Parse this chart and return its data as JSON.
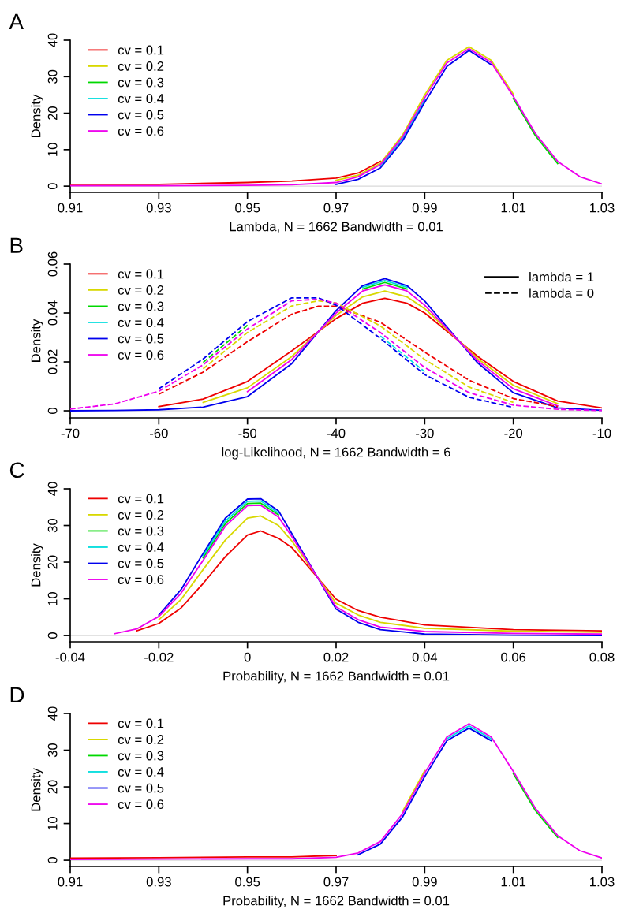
{
  "chart_data": [
    {
      "type": "line",
      "title": "A",
      "xlabel": "Lambda, N = 1662 Bandwidth = 0.01",
      "ylabel": "Density",
      "legend": "top left",
      "line_style": "solid",
      "xlim": [
        0.91,
        1.03
      ],
      "xticks": [
        0.91,
        0.93,
        0.95,
        0.97,
        0.99,
        1.01,
        1.03
      ],
      "ylim": [
        -1.7,
        40
      ],
      "yticks": [
        0,
        10,
        20,
        30,
        40
      ],
      "ref_lines": [
        {
          "axis": "y",
          "value": 0,
          "color": "#d9d9d9"
        }
      ],
      "x": [
        0.91,
        0.93,
        0.95,
        0.96,
        0.97,
        0.975,
        0.98,
        0.985,
        0.99,
        0.995,
        1.0,
        1.005,
        1.01,
        1.015,
        1.02,
        1.025,
        1.03
      ],
      "series": [
        {
          "name": "cv = 0.1",
          "color": "#ee0000",
          "values": [
            0.5,
            0.5,
            1.0,
            1.4,
            2.2,
            3.6,
            6.8,
            null,
            null,
            null,
            null,
            null,
            null,
            null,
            null,
            null,
            null
          ]
        },
        {
          "name": "cv = 0.2",
          "color": "#d8d800",
          "values": [
            null,
            null,
            null,
            null,
            1.6,
            3.0,
            6.3,
            14.0,
            25.0,
            34.5,
            38.2,
            34.5,
            25.2,
            null,
            null,
            null,
            null
          ]
        },
        {
          "name": "cv = 0.3",
          "color": "#00d800",
          "values": [
            null,
            null,
            null,
            null,
            null,
            null,
            null,
            null,
            null,
            null,
            null,
            null,
            24.0,
            13.8,
            6.2,
            null,
            null
          ]
        },
        {
          "name": "cv = 0.4",
          "color": "#00dddd",
          "values": [
            null,
            null,
            null,
            null,
            null,
            null,
            5.5,
            13.0,
            23.6,
            null,
            null,
            null,
            null,
            null,
            null,
            null,
            null
          ]
        },
        {
          "name": "cv = 0.5",
          "color": "#0000ee",
          "values": [
            null,
            null,
            null,
            null,
            0.5,
            1.9,
            5.0,
            12.4,
            23.0,
            32.8,
            37.2,
            33.3,
            null,
            null,
            null,
            null,
            null
          ]
        },
        {
          "name": "cv = 0.6",
          "color": "#ee00ee",
          "values": [
            0.1,
            0.1,
            0.2,
            0.4,
            1.0,
            2.6,
            5.9,
            13.5,
            24.2,
            33.8,
            37.7,
            33.9,
            24.6,
            14.4,
            6.8,
            2.6,
            0.6
          ]
        }
      ]
    },
    {
      "type": "line",
      "title": "B",
      "xlabel": "log-Likelihood, N = 1662 Bandwidth = 6",
      "ylabel": "Density",
      "legend": "top left",
      "line_style": "solid",
      "annotations": [
        "lambda = 1",
        "lambda = 0"
      ],
      "xlim": [
        -70,
        -10
      ],
      "xticks": [
        -70,
        -60,
        -50,
        -40,
        -30,
        -20,
        -10
      ],
      "ylim": [
        -0.0029,
        0.06
      ],
      "yticks": [
        0,
        0.02,
        0.04,
        0.06
      ],
      "ref_lines": [
        {
          "axis": "y",
          "value": 0,
          "color": "#d9d9d9"
        }
      ],
      "series": [
        {
          "name": "cv = 0.1",
          "color": "#ee0000",
          "x": [
            -60,
            -55,
            -50,
            -45,
            -40,
            -37,
            -34.5,
            -32,
            -30,
            -24,
            -20,
            -15,
            -10
          ],
          "values": [
            0.0017,
            0.0048,
            0.012,
            0.0245,
            0.0377,
            0.044,
            0.046,
            0.044,
            0.04,
            0.0222,
            0.012,
            0.004,
            0.0012
          ]
        },
        {
          "name": "cv = 0.2",
          "color": "#d8d800",
          "x": [
            -55,
            -50,
            -45,
            -40,
            -37,
            -34.5,
            -32,
            -30,
            -24,
            -20,
            -15
          ],
          "values": [
            0.0034,
            0.0094,
            0.0222,
            0.039,
            0.0466,
            0.049,
            0.0466,
            0.0418,
            0.0213,
            0.0104,
            0.0029
          ]
        },
        {
          "name": "cv = 0.3",
          "color": "#00d800",
          "x": [
            -37,
            -34.5,
            -32
          ],
          "values": [
            0.0498,
            0.0525,
            0.0498
          ]
        },
        {
          "name": "cv = 0.4",
          "color": "#00dddd",
          "x": [
            -37,
            -34.5,
            -32
          ],
          "values": [
            0.0505,
            0.0533,
            0.0505
          ]
        },
        {
          "name": "cv = 0.5",
          "color": "#0000ee",
          "x": [
            -70,
            -65,
            -60,
            -55,
            -50,
            -45,
            -40,
            -37,
            -34.5,
            -32,
            -30,
            -24,
            -20,
            -15,
            -10
          ],
          "values": [
            0,
            0.0001,
            0.0004,
            0.0015,
            0.0058,
            0.0193,
            0.041,
            0.0512,
            0.0541,
            0.0512,
            0.0449,
            0.0195,
            0.0074,
            0.0012,
            0.0002
          ]
        },
        {
          "name": "cv = 0.6",
          "color": "#ee00ee",
          "x": [
            -50,
            -45,
            -40,
            -37,
            -34.5,
            -32,
            -30,
            -24,
            -20,
            -15
          ],
          "values": [
            0.0078,
            0.021,
            0.04,
            0.049,
            0.0515,
            0.049,
            0.0432,
            0.0204,
            0.009,
            0.002
          ]
        },
        {
          "color": "#ee0000",
          "line_style": "dashed",
          "x": [
            -60,
            -55,
            -50,
            -45,
            -42,
            -40,
            -35,
            -30,
            -25,
            -20,
            -15
          ],
          "values": [
            0.0068,
            0.0158,
            0.0283,
            0.0395,
            0.0428,
            0.0428,
            0.0362,
            0.024,
            0.0125,
            0.005,
            0.0017
          ]
        },
        {
          "color": "#d8d800",
          "line_style": "dashed",
          "x": [
            -55,
            -50,
            -45,
            -42,
            -40,
            -35,
            -30,
            -25,
            -20
          ],
          "values": [
            0.0172,
            0.032,
            0.0429,
            0.045,
            0.0441,
            0.0347,
            0.021,
            0.0097,
            0.0034
          ]
        },
        {
          "color": "#00d800",
          "line_style": "dashed",
          "x": [
            -55,
            -50
          ],
          "values": [
            0.0198,
            0.035
          ]
        },
        {
          "color": "#00dddd",
          "line_style": "dashed",
          "x": [
            -35,
            -30
          ],
          "values": [
            0.0306,
            0.016
          ]
        },
        {
          "color": "#0000ee",
          "line_style": "dashed",
          "x": [
            -60,
            -55,
            -50,
            -45,
            -42,
            -40,
            -35,
            -30,
            -25,
            -20
          ],
          "values": [
            0.009,
            0.0212,
            0.0365,
            0.0462,
            0.0462,
            0.0432,
            0.0296,
            0.0148,
            0.0055,
            0.0014
          ]
        },
        {
          "color": "#ee00ee",
          "line_style": "dashed",
          "x": [
            -70,
            -65,
            -60,
            -55,
            -50,
            -45,
            -42,
            -40,
            -35,
            -30,
            -25,
            -20,
            -15,
            -10
          ],
          "values": [
            0.0007,
            0.0028,
            0.008,
            0.0188,
            0.0335,
            0.045,
            0.0456,
            0.044,
            0.032,
            0.0177,
            0.0074,
            0.0023,
            0.0006,
            0.0001
          ]
        }
      ]
    },
    {
      "type": "line",
      "title": "C",
      "xlabel": "Probability, N = 1662 Bandwidth = 0.01",
      "ylabel": "Density",
      "legend": "top left",
      "line_style": "solid",
      "xlim": [
        -0.04,
        0.08
      ],
      "xticks": [
        -0.04,
        -0.02,
        0,
        0.02,
        0.04,
        0.06,
        0.08
      ],
      "ylim": [
        -1.7,
        40
      ],
      "yticks": [
        0,
        10,
        20,
        30,
        40
      ],
      "ref_lines": [
        {
          "axis": "y",
          "value": 0,
          "color": "#d9d9d9"
        }
      ],
      "x": [
        -0.03,
        -0.025,
        -0.02,
        -0.015,
        -0.01,
        -0.005,
        0,
        0.003,
        0.007,
        0.01,
        0.02,
        0.025,
        0.03,
        0.04,
        0.06,
        0.08
      ],
      "series": [
        {
          "name": "cv = 0.1",
          "color": "#ee0000",
          "values": [
            null,
            1.3,
            3.3,
            7.5,
            14.2,
            21.5,
            27.4,
            28.5,
            26.5,
            24,
            9.9,
            6.8,
            5,
            2.9,
            1.6,
            1.3
          ]
        },
        {
          "name": "cv = 0.2",
          "color": "#d8d800",
          "values": [
            null,
            null,
            4.3,
            9.8,
            18,
            26,
            32,
            32.6,
            30,
            25.8,
            8.8,
            5.6,
            3.6,
            2,
            1.2,
            0.9
          ]
        },
        {
          "name": "cv = 0.3",
          "color": "#00d800",
          "values": [
            null,
            null,
            null,
            null,
            21.2,
            30.5,
            36.0,
            36.1,
            32.9,
            null,
            null,
            null,
            null,
            null,
            null,
            null
          ]
        },
        {
          "name": "cv = 0.4",
          "color": "#00dddd",
          "values": [
            null,
            null,
            null,
            null,
            21.8,
            31.2,
            36.6,
            36.7,
            33.4,
            null,
            null,
            null,
            null,
            null,
            null,
            null
          ]
        },
        {
          "name": "cv = 0.5",
          "color": "#0000ee",
          "values": [
            null,
            null,
            5.6,
            12.5,
            22.4,
            32.0,
            37.2,
            37.3,
            34.0,
            27.8,
            7.2,
            3.6,
            1.6,
            0.4,
            0.1,
            0.0
          ]
        },
        {
          "name": "cv = 0.6",
          "color": "#ee00ee",
          "values": [
            0.5,
            1.8,
            5.2,
            11.5,
            20.5,
            29.8,
            35.4,
            35.5,
            32.3,
            27,
            7.8,
            4.3,
            2.3,
            1.1,
            0.6,
            0.4
          ]
        }
      ]
    },
    {
      "type": "line",
      "title": "D",
      "xlabel": "Probability, N = 1662 Bandwidth = 0.01",
      "ylabel": "Density",
      "legend": "top left",
      "line_style": "solid",
      "xlim": [
        0.91,
        1.03
      ],
      "xticks": [
        0.91,
        0.93,
        0.95,
        0.97,
        0.99,
        1.01,
        1.03
      ],
      "ylim": [
        -1.7,
        40
      ],
      "yticks": [
        0,
        10,
        20,
        30,
        40
      ],
      "ref_lines": [
        {
          "axis": "y",
          "value": 0,
          "color": "#d9d9d9"
        }
      ],
      "x": [
        0.91,
        0.93,
        0.95,
        0.96,
        0.97,
        0.975,
        0.98,
        0.985,
        0.99,
        0.995,
        1.0,
        1.005,
        1.01,
        1.015,
        1.02,
        1.025,
        1.03
      ],
      "series": [
        {
          "name": "cv = 0.1",
          "color": "#ee0000",
          "values": [
            0.6,
            0.7,
            0.9,
            0.9,
            1.3,
            null,
            null,
            null,
            null,
            null,
            null,
            null,
            null,
            null,
            null,
            null,
            null
          ]
        },
        {
          "name": "cv = 0.2",
          "color": "#d8d800",
          "values": [
            null,
            null,
            null,
            null,
            null,
            null,
            null,
            13.3,
            24.4,
            null,
            null,
            null,
            null,
            null,
            null,
            null,
            null
          ]
        },
        {
          "name": "cv = 0.3",
          "color": "#00d800",
          "values": [
            null,
            null,
            null,
            null,
            null,
            null,
            null,
            null,
            null,
            null,
            null,
            null,
            23.6,
            13.5,
            6.2,
            null,
            null
          ]
        },
        {
          "name": "cv = 0.4",
          "color": "#00dddd",
          "values": [
            null,
            null,
            null,
            null,
            null,
            null,
            null,
            null,
            null,
            33.1,
            36.6,
            33.1,
            null,
            null,
            null,
            null,
            null
          ]
        },
        {
          "name": "cv = 0.5",
          "color": "#0000ee",
          "values": [
            null,
            null,
            null,
            null,
            null,
            1.5,
            4.4,
            11.8,
            22.8,
            32.6,
            36.0,
            32.6,
            null,
            null,
            null,
            null,
            null
          ]
        },
        {
          "name": "cv = 0.6",
          "color": "#ee00ee",
          "values": [
            0.2,
            0.3,
            0.4,
            0.4,
            0.8,
            2.0,
            5.1,
            12.7,
            23.8,
            33.6,
            37.2,
            33.6,
            24.2,
            14.1,
            6.7,
            2.6,
            0.6
          ]
        }
      ]
    }
  ]
}
